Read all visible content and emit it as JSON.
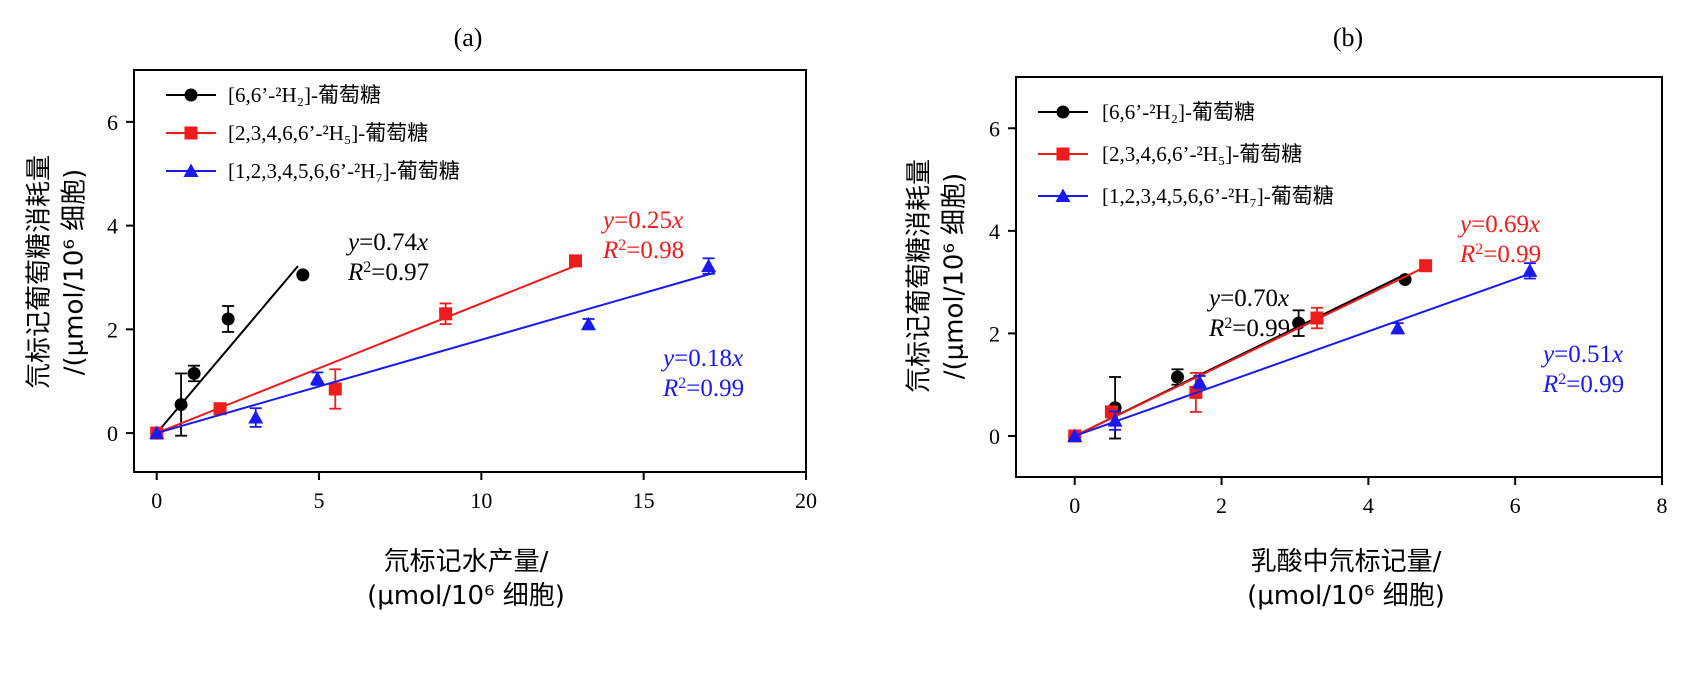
{
  "series_names": [
    "[6,6’-²H₂]-葡萄糖",
    "[2,3,4,6,6’-²H₅]-葡萄糖",
    "[1,2,3,4,5,6,6’-²H₇]-葡萄糖"
  ],
  "colors": {
    "black": "#000000",
    "red": "#ee1c1c",
    "blue": "#1a1af0"
  },
  "chart_data": [
    {
      "type": "scatter",
      "title": "(a)",
      "xlabel": [
        "氘标记水产量/",
        "(μmol/10⁶ 细胞)"
      ],
      "ylabel": [
        "氘标记葡萄糖消耗量",
        "/(μmol/10⁶ 细胞)"
      ],
      "xlim": [
        -0.7,
        20
      ],
      "ylim": [
        -0.75,
        7
      ],
      "xticks": [
        0,
        5,
        10,
        15,
        20
      ],
      "yticks": [
        0,
        2,
        4,
        6
      ],
      "legend_position": "top-left",
      "series": [
        {
          "name": "[6,6’-²H₂]-葡萄糖",
          "color": "black",
          "marker": "circle",
          "points": [
            {
              "x": 0,
              "y": 0,
              "err": 0.05
            },
            {
              "x": 0.75,
              "y": 0.55,
              "err": 0.6
            },
            {
              "x": 1.15,
              "y": 1.15,
              "err": 0.15
            },
            {
              "x": 2.2,
              "y": 2.2,
              "err": 0.25
            },
            {
              "x": 4.5,
              "y": 3.05,
              "err": 0
            }
          ],
          "fit": {
            "slope": 0.74,
            "x_range": [
              0,
              4.35
            ]
          },
          "equation": {
            "y": "y",
            "eq": "=0.74",
            "x": "x",
            "r": "R",
            "r2": "=0.97"
          }
        },
        {
          "name": "[2,3,4,6,6’-²H₅]-葡萄糖",
          "color": "red",
          "marker": "square",
          "points": [
            {
              "x": 0,
              "y": 0,
              "err": 0
            },
            {
              "x": 1.95,
              "y": 0.47,
              "err": 0
            },
            {
              "x": 5.5,
              "y": 0.85,
              "err": 0.38
            },
            {
              "x": 8.9,
              "y": 2.3,
              "err": 0.2
            },
            {
              "x": 12.9,
              "y": 3.32,
              "err": 0.1
            }
          ],
          "fit": {
            "slope": 0.25,
            "x_range": [
              0,
              12.9
            ]
          },
          "equation": {
            "y": "y",
            "eq": "=0.25",
            "x": "x",
            "r": "R",
            "r2": "=0.98"
          }
        },
        {
          "name": "[1,2,3,4,5,6,6’-²H₇]-葡萄糖",
          "color": "blue",
          "marker": "triangle",
          "points": [
            {
              "x": 0,
              "y": 0,
              "err": 0
            },
            {
              "x": 3.05,
              "y": 0.3,
              "err": 0.18
            },
            {
              "x": 4.95,
              "y": 1.05,
              "err": 0.12
            },
            {
              "x": 13.3,
              "y": 2.1,
              "err": 0.1
            },
            {
              "x": 17.0,
              "y": 3.22,
              "err": 0.15
            }
          ],
          "fit": {
            "slope": 0.18,
            "x_range": [
              0,
              17.2
            ]
          },
          "equation": {
            "y": "y",
            "eq": "=0.18",
            "x": "x",
            "r": "R",
            "r2": "=0.99"
          }
        }
      ]
    },
    {
      "type": "scatter",
      "title": "(b)",
      "xlabel": [
        "乳酸中氘标记量/",
        "(μmol/10⁶ 细胞)"
      ],
      "ylabel": [
        "氘标记葡萄糖消耗量",
        "/(μmol/10⁶ 细胞)"
      ],
      "xlim": [
        -0.8,
        8
      ],
      "ylim": [
        -0.8,
        7
      ],
      "xticks": [
        0,
        2,
        4,
        6,
        8
      ],
      "yticks": [
        0,
        2,
        4,
        6
      ],
      "legend_position": "top-left",
      "series": [
        {
          "name": "[6,6’-²H₂]-葡萄糖",
          "color": "black",
          "marker": "circle",
          "points": [
            {
              "x": 0,
              "y": 0,
              "err": 0.05
            },
            {
              "x": 0.55,
              "y": 0.55,
              "err": 0.6
            },
            {
              "x": 1.4,
              "y": 1.15,
              "err": 0.15
            },
            {
              "x": 3.05,
              "y": 2.2,
              "err": 0.25
            },
            {
              "x": 4.5,
              "y": 3.05,
              "err": 0
            }
          ],
          "fit": {
            "slope": 0.7,
            "x_range": [
              0,
              4.5
            ]
          },
          "equation": {
            "y": "y",
            "eq": "=0.70",
            "x": "x",
            "r": "R",
            "r2": "=0.99"
          }
        },
        {
          "name": "[2,3,4,6,6’-²H₅]-葡萄糖",
          "color": "red",
          "marker": "square",
          "points": [
            {
              "x": 0,
              "y": 0,
              "err": 0
            },
            {
              "x": 0.5,
              "y": 0.47,
              "err": 0
            },
            {
              "x": 1.65,
              "y": 0.85,
              "err": 0.38
            },
            {
              "x": 3.3,
              "y": 2.3,
              "err": 0.2
            },
            {
              "x": 4.78,
              "y": 3.32,
              "err": 0.1
            }
          ],
          "fit": {
            "slope": 0.69,
            "x_range": [
              0,
              4.78
            ]
          },
          "equation": {
            "y": "y",
            "eq": "=0.69",
            "x": "x",
            "r": "R",
            "r2": "=0.99"
          }
        },
        {
          "name": "[1,2,3,4,5,6,6’-²H₇]-葡萄糖",
          "color": "blue",
          "marker": "triangle",
          "points": [
            {
              "x": 0,
              "y": 0,
              "err": 0
            },
            {
              "x": 0.55,
              "y": 0.3,
              "err": 0.18
            },
            {
              "x": 1.7,
              "y": 1.05,
              "err": 0.12
            },
            {
              "x": 4.4,
              "y": 2.1,
              "err": 0.1
            },
            {
              "x": 6.2,
              "y": 3.22,
              "err": 0.15
            }
          ],
          "fit": {
            "slope": 0.51,
            "x_range": [
              0,
              6.2
            ]
          },
          "equation": {
            "y": "y",
            "eq": "=0.51",
            "x": "x",
            "r": "R",
            "r2": "=0.99"
          }
        }
      ]
    }
  ]
}
